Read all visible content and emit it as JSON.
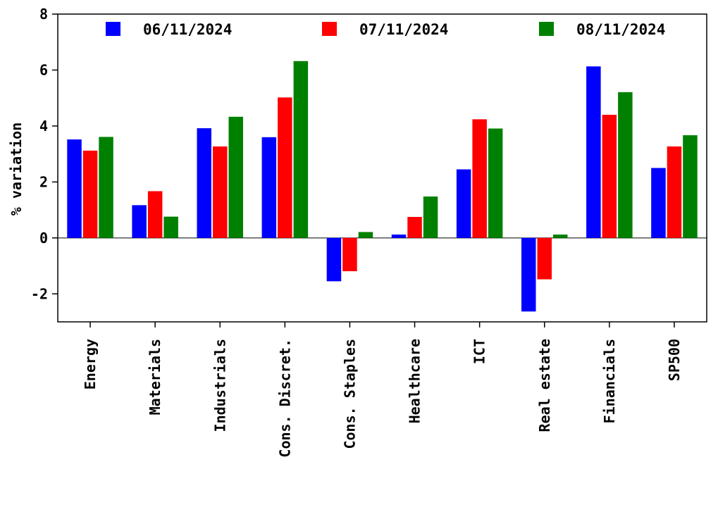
{
  "chart_data": {
    "type": "bar",
    "title": "",
    "xlabel": "",
    "ylabel": "% variation",
    "ylim": [
      -3,
      8
    ],
    "yticks": [
      -2,
      0,
      2,
      4,
      6,
      8
    ],
    "grid": false,
    "legend_position": "top",
    "categories": [
      "Energy",
      "Materials",
      "Industrials",
      "Cons. Discret.",
      "Cons. Staples",
      "Healthcare",
      "ICT",
      "Real estate",
      "Financials",
      "SP500"
    ],
    "series": [
      {
        "name": "06/11/2024",
        "color": "#0000ff",
        "values": [
          3.52,
          1.17,
          3.92,
          3.6,
          -1.55,
          0.12,
          2.45,
          -2.63,
          6.13,
          2.5
        ]
      },
      {
        "name": "07/11/2024",
        "color": "#ff0000",
        "values": [
          3.12,
          1.67,
          3.27,
          5.02,
          -1.19,
          0.75,
          4.24,
          -1.48,
          4.4,
          3.27
        ]
      },
      {
        "name": "08/11/2024",
        "color": "#008000",
        "values": [
          3.61,
          0.76,
          4.33,
          6.32,
          0.21,
          1.48,
          3.91,
          0.12,
          5.21,
          3.67
        ]
      }
    ]
  }
}
